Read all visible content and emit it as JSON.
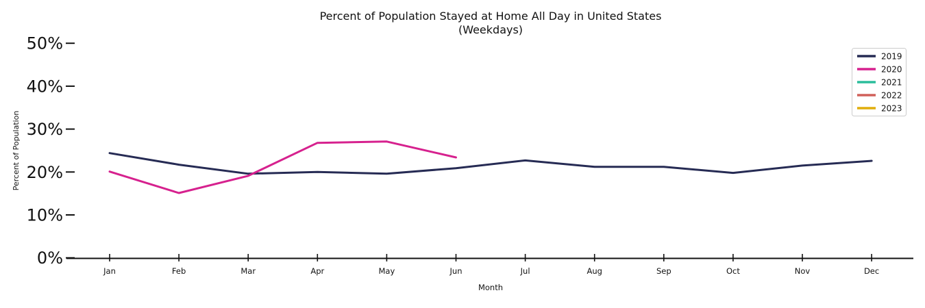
{
  "chart_data": {
    "type": "line",
    "title": "Percent of Population Stayed at Home All Day in United States",
    "subtitle": "(Weekdays)",
    "xlabel": "Month",
    "ylabel": "Percent of Population",
    "categories": [
      "Jan",
      "Feb",
      "Mar",
      "Apr",
      "May",
      "Jun",
      "Jul",
      "Aug",
      "Sep",
      "Oct",
      "Nov",
      "Dec"
    ],
    "yticks": [
      {
        "label": "0%",
        "value": 0
      },
      {
        "label": "10%",
        "value": 10
      },
      {
        "label": "20%",
        "value": 20
      },
      {
        "label": "30%",
        "value": 30
      },
      {
        "label": "40%",
        "value": 40
      },
      {
        "label": "50%",
        "value": 50
      }
    ],
    "ylim": [
      0,
      53
    ],
    "grid": false,
    "legend_position": "upper right",
    "axis_color": "#111111",
    "series": [
      {
        "name": "2019",
        "color": "#262b54",
        "values": [
          24.4,
          21.7,
          19.6,
          20.0,
          19.6,
          20.9,
          22.7,
          21.2,
          21.2,
          19.8,
          21.5,
          22.6
        ]
      },
      {
        "name": "2020",
        "color": "#d6218e",
        "values": [
          20.1,
          15.1,
          19.1,
          26.8,
          27.1,
          23.4
        ]
      },
      {
        "name": "2021",
        "color": "#2bbd9c",
        "values": []
      },
      {
        "name": "2022",
        "color": "#d0605a",
        "values": []
      },
      {
        "name": "2023",
        "color": "#e0ad0c",
        "values": []
      }
    ]
  }
}
